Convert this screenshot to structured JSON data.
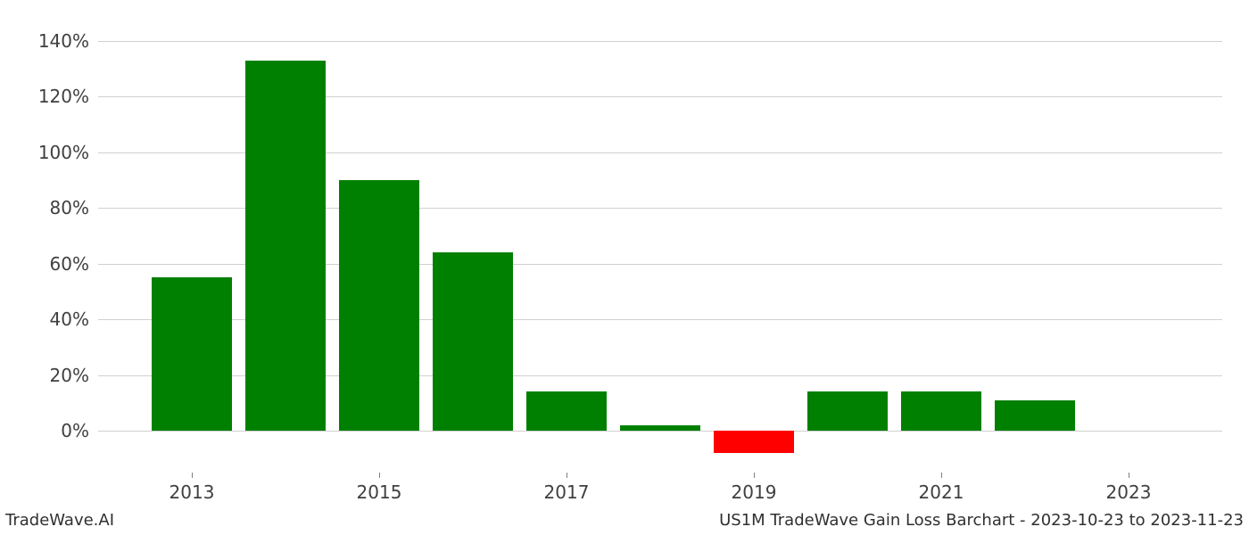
{
  "chart": {
    "type": "bar",
    "background_color": "#ffffff",
    "grid_color": "#d0d0d0",
    "ylim": [
      -15,
      145
    ],
    "ytick_step": 20,
    "ytick_min": 0,
    "ytick_max": 140,
    "y_tick_labels": [
      "0%",
      "20%",
      "40%",
      "60%",
      "80%",
      "100%",
      "120%",
      "140%"
    ],
    "y_tick_values": [
      0,
      20,
      40,
      60,
      80,
      100,
      120,
      140
    ],
    "xlim": [
      2012,
      2024
    ],
    "x_tick_labels": [
      "2013",
      "2015",
      "2017",
      "2019",
      "2021",
      "2023"
    ],
    "x_tick_values": [
      2013,
      2015,
      2017,
      2019,
      2021,
      2023
    ],
    "axis_label_fontsize": 20,
    "axis_label_color": "#404040",
    "bar_width": 0.85,
    "bars": [
      {
        "x": 2013,
        "value": 55,
        "color": "#008000"
      },
      {
        "x": 2014,
        "value": 133,
        "color": "#008000"
      },
      {
        "x": 2015,
        "value": 90,
        "color": "#008000"
      },
      {
        "x": 2016,
        "value": 64,
        "color": "#008000"
      },
      {
        "x": 2017,
        "value": 14,
        "color": "#008000"
      },
      {
        "x": 2018,
        "value": 2,
        "color": "#008000"
      },
      {
        "x": 2019,
        "value": -8,
        "color": "#ff0000"
      },
      {
        "x": 2020,
        "value": 14,
        "color": "#008000"
      },
      {
        "x": 2021,
        "value": 14,
        "color": "#008000"
      },
      {
        "x": 2022,
        "value": 11,
        "color": "#008000"
      }
    ]
  },
  "footer": {
    "left": "TradeWave.AI",
    "right": "US1M TradeWave Gain Loss Barchart - 2023-10-23 to 2023-11-23",
    "fontsize": 18,
    "color": "#303030"
  }
}
